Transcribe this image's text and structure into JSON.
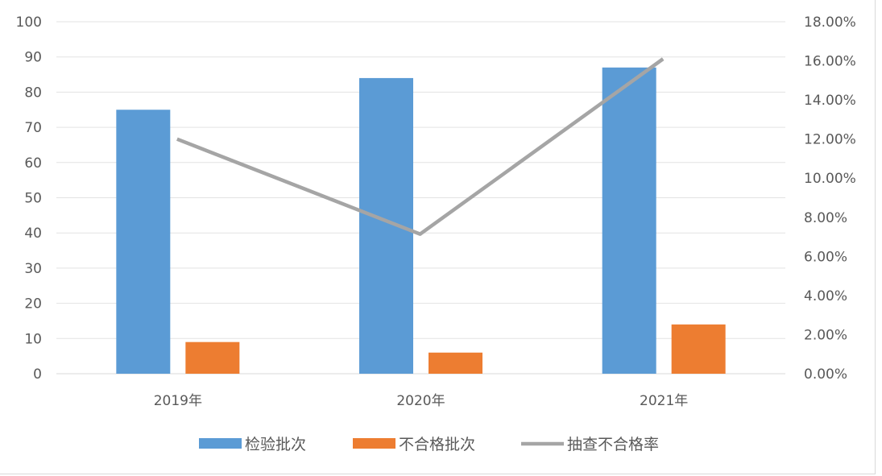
{
  "chart_data": {
    "type": "bar",
    "categories": [
      "2019年",
      "2020年",
      "2021年"
    ],
    "series": [
      {
        "name": "检验批次",
        "type": "bar",
        "axis": "left",
        "color": "#5b9bd5",
        "values": [
          75,
          84,
          87
        ]
      },
      {
        "name": "不合格批次",
        "type": "bar",
        "axis": "left",
        "color": "#ed7d31",
        "values": [
          9,
          6,
          14
        ]
      },
      {
        "name": "抽查不合格率",
        "type": "line",
        "axis": "right",
        "color": "#a5a5a5",
        "values": [
          0.12,
          0.0714,
          0.161
        ]
      }
    ],
    "y_left": {
      "min": 0,
      "max": 100,
      "ticks": [
        "0",
        "10",
        "20",
        "30",
        "40",
        "50",
        "60",
        "70",
        "80",
        "90",
        "100"
      ]
    },
    "y_right": {
      "min": 0,
      "max": 0.18,
      "ticks": [
        "0.00%",
        "2.00%",
        "4.00%",
        "6.00%",
        "8.00%",
        "10.00%",
        "12.00%",
        "14.00%",
        "16.00%",
        "18.00%"
      ]
    },
    "grid": true,
    "legend_position": "bottom"
  }
}
